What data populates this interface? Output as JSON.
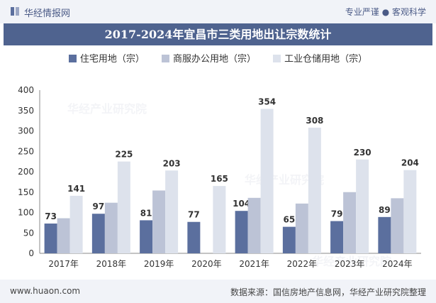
{
  "header": {
    "brand": "华经情报网",
    "tagline": "专业严谨 ● 客观科学"
  },
  "watermarks": [
    "华经产业研究院",
    "华经产业研究院",
    "华经产业研究院"
  ],
  "footer": {
    "website": "www.huaon.com",
    "source": "数据来源：国信房地产信息网，华经产业研究院整理"
  },
  "chart_data": {
    "type": "bar",
    "title": "2017-2024年宜昌市三类用地出让宗数统计",
    "categories": [
      "2017年",
      "2018年",
      "2019年",
      "2020年",
      "2021年",
      "2022年",
      "2023年",
      "2024年"
    ],
    "series": [
      {
        "name": "住宅用地（宗）",
        "values": [
          73,
          97,
          81,
          77,
          104,
          65,
          79,
          89
        ],
        "color": "#5b6f9e",
        "labeled": true
      },
      {
        "name": "商服办公用地（宗）",
        "values": [
          86,
          124,
          154,
          0,
          136,
          122,
          150,
          135
        ],
        "color": "#bcc3d6",
        "labeled": false
      },
      {
        "name": "工业仓储用地（宗）",
        "values": [
          141,
          225,
          203,
          165,
          354,
          308,
          230,
          204
        ],
        "color": "#dde2ec",
        "labeled": true
      }
    ],
    "yticks": [
      "0",
      "50",
      "100",
      "150",
      "200",
      "250",
      "300",
      "350",
      "400"
    ],
    "ylim": [
      0,
      400
    ],
    "grid": false,
    "legend": "top-center"
  }
}
